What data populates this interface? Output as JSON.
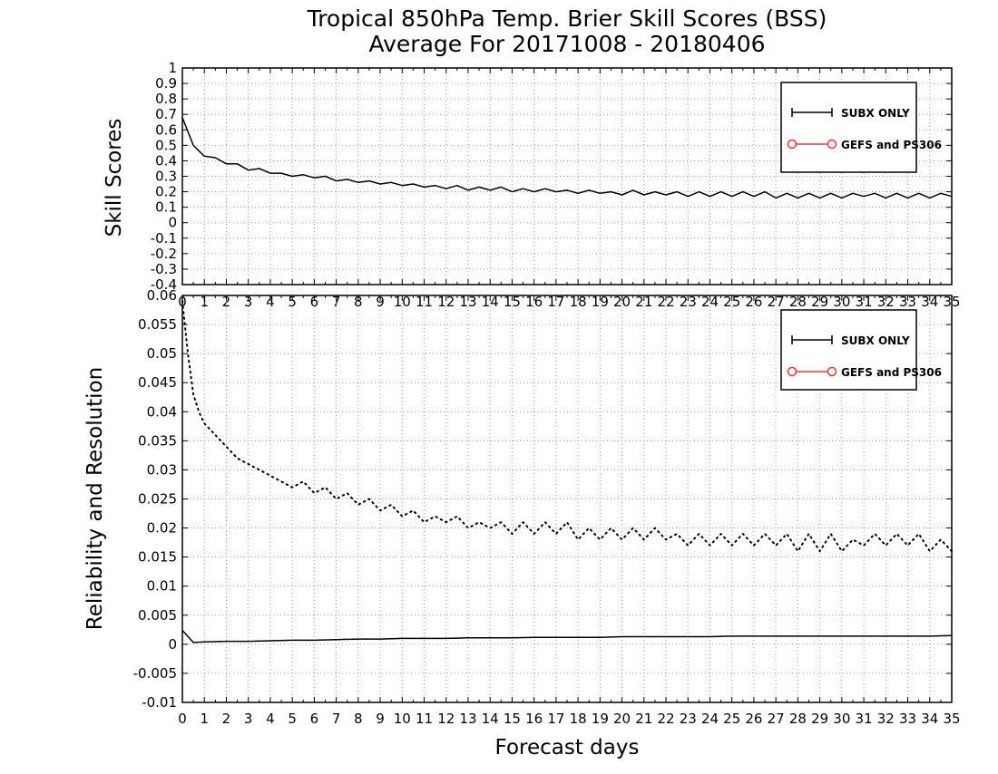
{
  "title_line1": "Tropical 850hPa Temp. Brier Skill Scores (BSS)",
  "title_line2": "Average For 20171008 - 20180406",
  "xlabel": "Forecast days",
  "colors": {
    "line": "#000000",
    "second_series": "#ff3333",
    "grid": "#9a9a9a"
  },
  "chart_data": [
    {
      "type": "line",
      "ylabel": "Skill Scores",
      "xlim": [
        0,
        35
      ],
      "ylim": [
        -0.4,
        1
      ],
      "grid": true,
      "legend_position": "top-right",
      "x_ticks": [
        0,
        1,
        2,
        3,
        4,
        5,
        6,
        7,
        8,
        9,
        10,
        11,
        12,
        13,
        14,
        15,
        16,
        17,
        18,
        19,
        20,
        21,
        22,
        23,
        24,
        25,
        26,
        27,
        28,
        29,
        30,
        31,
        32,
        33,
        34,
        35
      ],
      "y_ticks": [
        "1",
        "0.9",
        "0.8",
        "0.7",
        "0.6",
        "0.5",
        "0.4",
        "0.3",
        "0.2",
        "0.1",
        "0",
        "-0.1",
        "-0.2",
        "-0.3",
        "-0.4"
      ],
      "series": [
        {
          "name": "SUBX ONLY",
          "style": "solid",
          "color": "#000000",
          "x": [
            0,
            0.5,
            1,
            1.5,
            2,
            2.5,
            3,
            3.5,
            4,
            4.5,
            5,
            5.5,
            6,
            6.5,
            7,
            7.5,
            8,
            8.5,
            9,
            9.5,
            10,
            10.5,
            11,
            11.5,
            12,
            12.5,
            13,
            13.5,
            14,
            14.5,
            15,
            15.5,
            16,
            16.5,
            17,
            17.5,
            18,
            18.5,
            19,
            19.5,
            20,
            20.5,
            21,
            21.5,
            22,
            22.5,
            23,
            23.5,
            24,
            24.5,
            25,
            25.5,
            26,
            26.5,
            27,
            27.5,
            28,
            28.5,
            29,
            29.5,
            30,
            30.5,
            31,
            31.5,
            32,
            32.5,
            33,
            33.5,
            34,
            34.5,
            35
          ],
          "y": [
            0.68,
            0.5,
            0.43,
            0.42,
            0.38,
            0.38,
            0.34,
            0.35,
            0.32,
            0.32,
            0.3,
            0.31,
            0.29,
            0.3,
            0.27,
            0.28,
            0.26,
            0.27,
            0.25,
            0.26,
            0.24,
            0.25,
            0.23,
            0.24,
            0.22,
            0.24,
            0.21,
            0.23,
            0.21,
            0.23,
            0.2,
            0.22,
            0.2,
            0.22,
            0.2,
            0.21,
            0.19,
            0.21,
            0.19,
            0.2,
            0.18,
            0.21,
            0.18,
            0.2,
            0.18,
            0.2,
            0.17,
            0.2,
            0.17,
            0.2,
            0.17,
            0.2,
            0.17,
            0.2,
            0.16,
            0.19,
            0.16,
            0.19,
            0.16,
            0.19,
            0.16,
            0.19,
            0.17,
            0.19,
            0.16,
            0.19,
            0.16,
            0.19,
            0.16,
            0.19,
            0.17
          ]
        },
        {
          "name": "GEFS and PS306",
          "style": "circles",
          "color": "#ff3333",
          "x": [],
          "y": []
        }
      ]
    },
    {
      "type": "line",
      "ylabel": "Reliability and Resolution",
      "xlim": [
        0,
        35
      ],
      "ylim": [
        -0.01,
        0.06
      ],
      "grid": true,
      "legend_position": "top-right",
      "x_ticks": [
        0,
        1,
        2,
        3,
        4,
        5,
        6,
        7,
        8,
        9,
        10,
        11,
        12,
        13,
        14,
        15,
        16,
        17,
        18,
        19,
        20,
        21,
        22,
        23,
        24,
        25,
        26,
        27,
        28,
        29,
        30,
        31,
        32,
        33,
        34,
        35
      ],
      "y_ticks": [
        "0.06",
        "0.055",
        "0.05",
        "0.045",
        "0.04",
        "0.035",
        "0.03",
        "0.025",
        "0.02",
        "0.015",
        "0.01",
        "0.005",
        "0",
        "-0.005",
        "-0.01"
      ],
      "series": [
        {
          "name": "SUBX ONLY",
          "style": "dotted",
          "color": "#000000",
          "x": [
            0,
            0.25,
            0.5,
            0.75,
            1,
            1.5,
            2,
            2.5,
            3,
            3.5,
            4,
            4.5,
            5,
            5.5,
            6,
            6.5,
            7,
            7.5,
            8,
            8.5,
            9,
            9.5,
            10,
            10.5,
            11,
            11.5,
            12,
            12.5,
            13,
            13.5,
            14,
            14.5,
            15,
            15.5,
            16,
            16.5,
            17,
            17.5,
            18,
            18.5,
            19,
            19.5,
            20,
            20.5,
            21,
            21.5,
            22,
            22.5,
            23,
            23.5,
            24,
            24.5,
            25,
            25.5,
            26,
            26.5,
            27,
            27.5,
            28,
            28.5,
            29,
            29.5,
            30,
            30.5,
            31,
            31.5,
            32,
            32.5,
            33,
            33.5,
            34,
            34.5,
            35
          ],
          "y": [
            0.059,
            0.05,
            0.043,
            0.04,
            0.038,
            0.036,
            0.034,
            0.032,
            0.031,
            0.03,
            0.029,
            0.028,
            0.027,
            0.028,
            0.026,
            0.027,
            0.025,
            0.026,
            0.024,
            0.025,
            0.023,
            0.024,
            0.022,
            0.023,
            0.021,
            0.022,
            0.021,
            0.022,
            0.02,
            0.021,
            0.02,
            0.021,
            0.019,
            0.021,
            0.019,
            0.021,
            0.019,
            0.021,
            0.018,
            0.02,
            0.018,
            0.02,
            0.018,
            0.02,
            0.018,
            0.02,
            0.018,
            0.019,
            0.017,
            0.019,
            0.017,
            0.019,
            0.017,
            0.019,
            0.017,
            0.019,
            0.017,
            0.019,
            0.016,
            0.019,
            0.016,
            0.019,
            0.016,
            0.018,
            0.017,
            0.019,
            0.017,
            0.019,
            0.017,
            0.019,
            0.016,
            0.018,
            0.016
          ]
        },
        {
          "name": "",
          "style": "solid",
          "color": "#000000",
          "x": [
            0,
            0.5,
            1,
            2,
            3,
            4,
            5,
            6,
            7,
            8,
            9,
            10,
            11,
            12,
            13,
            14,
            15,
            16,
            17,
            18,
            19,
            20,
            21,
            22,
            23,
            24,
            25,
            26,
            27,
            28,
            29,
            30,
            31,
            32,
            33,
            34,
            35
          ],
          "y": [
            0.0024,
            0.0003,
            0.0004,
            0.0005,
            0.0005,
            0.0006,
            0.0007,
            0.0007,
            0.0008,
            0.0009,
            0.0009,
            0.001,
            0.001,
            0.001,
            0.0011,
            0.0011,
            0.0011,
            0.0012,
            0.0012,
            0.0012,
            0.0012,
            0.0013,
            0.0013,
            0.0013,
            0.0013,
            0.0013,
            0.0014,
            0.0014,
            0.0014,
            0.0014,
            0.0014,
            0.0014,
            0.0014,
            0.0014,
            0.0014,
            0.0014,
            0.0015
          ]
        },
        {
          "name": "GEFS and PS306",
          "style": "circles",
          "color": "#ff3333",
          "x": [],
          "y": []
        }
      ]
    }
  ]
}
